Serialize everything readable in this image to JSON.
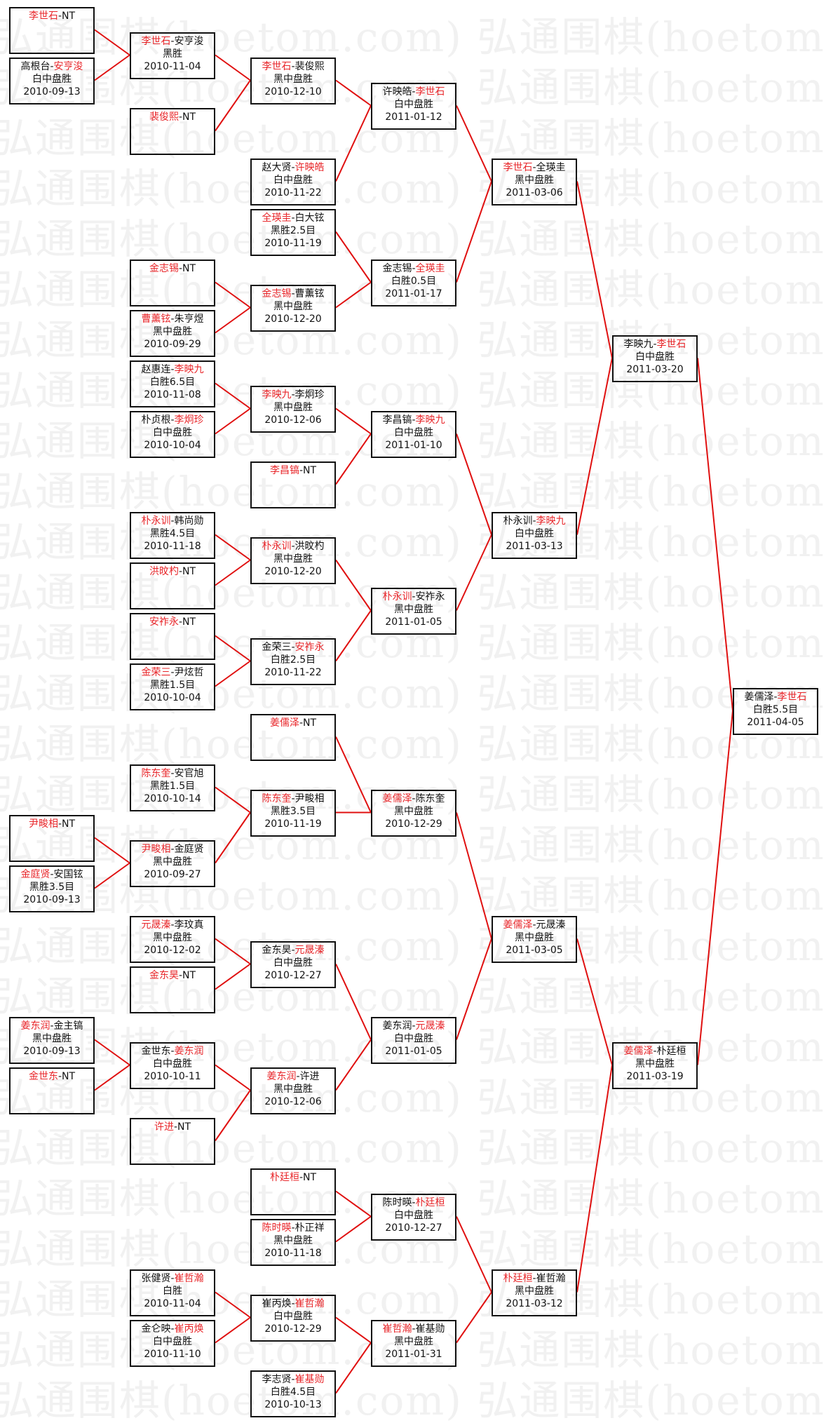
{
  "watermark": "弘通围棋(hoetom.com)",
  "colors": {
    "winner": "#e8262a",
    "line": "#e01010",
    "border": "#111111"
  },
  "matches": [
    {
      "players": [
        {
          "name": "李世石",
          "winner": true
        },
        {
          "name": "NT",
          "winner": false
        }
      ],
      "result": "",
      "date": ""
    },
    {
      "players": [
        {
          "name": "高根台",
          "winner": false
        },
        {
          "name": "安亨浚",
          "winner": true
        }
      ],
      "result": "白中盘胜",
      "date": "2010-09-13"
    },
    {
      "players": [
        {
          "name": "尹畯相",
          "winner": true
        },
        {
          "name": "NT",
          "winner": false
        }
      ],
      "result": "",
      "date": ""
    },
    {
      "players": [
        {
          "name": "金庭贤",
          "winner": true
        },
        {
          "name": "安国铉",
          "winner": false
        }
      ],
      "result": "黑胜3.5目",
      "date": "2010-09-13"
    },
    {
      "players": [
        {
          "name": "姜东润",
          "winner": true
        },
        {
          "name": "金主镐",
          "winner": false
        }
      ],
      "result": "黑中盘胜",
      "date": "2010-09-13"
    },
    {
      "players": [
        {
          "name": "金世东",
          "winner": true
        },
        {
          "name": "NT",
          "winner": false
        }
      ],
      "result": "",
      "date": ""
    },
    {
      "players": [
        {
          "name": "李世石",
          "winner": true
        },
        {
          "name": "安亨浚",
          "winner": false
        }
      ],
      "result": "黑胜",
      "date": "2010-11-04"
    },
    {
      "players": [
        {
          "name": "裴俊熙",
          "winner": true
        },
        {
          "name": "NT",
          "winner": false
        }
      ],
      "result": "",
      "date": ""
    },
    {
      "players": [
        {
          "name": "金志锡",
          "winner": true
        },
        {
          "name": "NT",
          "winner": false
        }
      ],
      "result": "",
      "date": ""
    },
    {
      "players": [
        {
          "name": "曹薰铉",
          "winner": true
        },
        {
          "name": "朱亨煜",
          "winner": false
        }
      ],
      "result": "黑中盘胜",
      "date": "2010-09-29"
    },
    {
      "players": [
        {
          "name": "赵惠连",
          "winner": false
        },
        {
          "name": "李映九",
          "winner": true
        }
      ],
      "result": "白胜6.5目",
      "date": "2010-11-08"
    },
    {
      "players": [
        {
          "name": "朴贞根",
          "winner": false
        },
        {
          "name": "李炯珍",
          "winner": true
        }
      ],
      "result": "白中盘胜",
      "date": "2010-10-04"
    },
    {
      "players": [
        {
          "name": "朴永训",
          "winner": true
        },
        {
          "name": "韩尚勋",
          "winner": false
        }
      ],
      "result": "黑胜4.5目",
      "date": "2010-11-18"
    },
    {
      "players": [
        {
          "name": "洪旼杓",
          "winner": true
        },
        {
          "name": "NT",
          "winner": false
        }
      ],
      "result": "",
      "date": ""
    },
    {
      "players": [
        {
          "name": "安祚永",
          "winner": true
        },
        {
          "name": "NT",
          "winner": false
        }
      ],
      "result": "",
      "date": ""
    },
    {
      "players": [
        {
          "name": "金荣三",
          "winner": true
        },
        {
          "name": "尹炫哲",
          "winner": false
        }
      ],
      "result": "黑胜1.5目",
      "date": "2010-10-04"
    },
    {
      "players": [
        {
          "name": "陈东奎",
          "winner": true
        },
        {
          "name": "安官旭",
          "winner": false
        }
      ],
      "result": "黑胜1.5目",
      "date": "2010-10-14"
    },
    {
      "players": [
        {
          "name": "尹畯相",
          "winner": true
        },
        {
          "name": "金庭贤",
          "winner": false
        }
      ],
      "result": "黑中盘胜",
      "date": "2010-09-27"
    },
    {
      "players": [
        {
          "name": "元晟溱",
          "winner": true
        },
        {
          "name": "李玟真",
          "winner": false
        }
      ],
      "result": "黑中盘胜",
      "date": "2010-12-02"
    },
    {
      "players": [
        {
          "name": "金东昊",
          "winner": true
        },
        {
          "name": "NT",
          "winner": false
        }
      ],
      "result": "",
      "date": ""
    },
    {
      "players": [
        {
          "name": "金世东",
          "winner": false
        },
        {
          "name": "姜东润",
          "winner": true
        }
      ],
      "result": "白中盘胜",
      "date": "2010-10-11"
    },
    {
      "players": [
        {
          "name": "许进",
          "winner": true
        },
        {
          "name": "NT",
          "winner": false
        }
      ],
      "result": "",
      "date": ""
    },
    {
      "players": [
        {
          "name": "张健贤",
          "winner": false
        },
        {
          "name": "崔哲瀚",
          "winner": true
        }
      ],
      "result": "白胜",
      "date": "2010-11-04"
    },
    {
      "players": [
        {
          "name": "金仑映",
          "winner": false
        },
        {
          "name": "崔丙焕",
          "winner": true
        }
      ],
      "result": "白中盘胜",
      "date": "2010-11-10"
    },
    {
      "players": [
        {
          "name": "李世石",
          "winner": true
        },
        {
          "name": "裴俊熙",
          "winner": false
        }
      ],
      "result": "黑中盘胜",
      "date": "2010-12-10"
    },
    {
      "players": [
        {
          "name": "赵大贤",
          "winner": false
        },
        {
          "name": "许映皓",
          "winner": true
        }
      ],
      "result": "白中盘胜",
      "date": "2010-11-22"
    },
    {
      "players": [
        {
          "name": "全瑛圭",
          "winner": true
        },
        {
          "name": "白大铉",
          "winner": false
        }
      ],
      "result": "黑胜2.5目",
      "date": "2010-11-19"
    },
    {
      "players": [
        {
          "name": "金志锡",
          "winner": true
        },
        {
          "name": "曹薰铉",
          "winner": false
        }
      ],
      "result": "黑中盘胜",
      "date": "2010-12-20"
    },
    {
      "players": [
        {
          "name": "李映九",
          "winner": true
        },
        {
          "name": "李炯珍",
          "winner": false
        }
      ],
      "result": "黑中盘胜",
      "date": "2010-12-06"
    },
    {
      "players": [
        {
          "name": "李昌镐",
          "winner": true
        },
        {
          "name": "NT",
          "winner": false
        }
      ],
      "result": "",
      "date": ""
    },
    {
      "players": [
        {
          "name": "朴永训",
          "winner": true
        },
        {
          "name": "洪旼杓",
          "winner": false
        }
      ],
      "result": "黑中盘胜",
      "date": "2010-12-20"
    },
    {
      "players": [
        {
          "name": "金荣三",
          "winner": false
        },
        {
          "name": "安祚永",
          "winner": true
        }
      ],
      "result": "白胜2.5目",
      "date": "2010-11-22"
    },
    {
      "players": [
        {
          "name": "姜儒泽",
          "winner": true
        },
        {
          "name": "NT",
          "winner": false
        }
      ],
      "result": "",
      "date": ""
    },
    {
      "players": [
        {
          "name": "陈东奎",
          "winner": true
        },
        {
          "name": "尹畯相",
          "winner": false
        }
      ],
      "result": "黑胜3.5目",
      "date": "2010-11-19"
    },
    {
      "players": [
        {
          "name": "金东昊",
          "winner": false
        },
        {
          "name": "元晟溱",
          "winner": true
        }
      ],
      "result": "白中盘胜",
      "date": "2010-12-27"
    },
    {
      "players": [
        {
          "name": "姜东润",
          "winner": true
        },
        {
          "name": "许进",
          "winner": false
        }
      ],
      "result": "黑中盘胜",
      "date": "2010-12-06"
    },
    {
      "players": [
        {
          "name": "朴廷桓",
          "winner": true
        },
        {
          "name": "NT",
          "winner": false
        }
      ],
      "result": "",
      "date": ""
    },
    {
      "players": [
        {
          "name": "陈时暎",
          "winner": true
        },
        {
          "name": "朴正祥",
          "winner": false
        }
      ],
      "result": "黑中盘胜",
      "date": "2010-11-18"
    },
    {
      "players": [
        {
          "name": "崔丙焕",
          "winner": false
        },
        {
          "name": "崔哲瀚",
          "winner": true
        }
      ],
      "result": "白中盘胜",
      "date": "2010-12-29"
    },
    {
      "players": [
        {
          "name": "李志贤",
          "winner": false
        },
        {
          "name": "崔基勋",
          "winner": true
        }
      ],
      "result": "白胜4.5目",
      "date": "2010-10-13"
    },
    {
      "players": [
        {
          "name": "许映皓",
          "winner": false
        },
        {
          "name": "李世石",
          "winner": true
        }
      ],
      "result": "白中盘胜",
      "date": "2011-01-12"
    },
    {
      "players": [
        {
          "name": "金志锡",
          "winner": false
        },
        {
          "name": "全瑛圭",
          "winner": true
        }
      ],
      "result": "白胜0.5目",
      "date": "2011-01-17"
    },
    {
      "players": [
        {
          "name": "李昌镐",
          "winner": false
        },
        {
          "name": "李映九",
          "winner": true
        }
      ],
      "result": "白中盘胜",
      "date": "2011-01-10"
    },
    {
      "players": [
        {
          "name": "朴永训",
          "winner": true
        },
        {
          "name": "安祚永",
          "winner": false
        }
      ],
      "result": "黑中盘胜",
      "date": "2011-01-05"
    },
    {
      "players": [
        {
          "name": "姜儒泽",
          "winner": true
        },
        {
          "name": "陈东奎",
          "winner": false
        }
      ],
      "result": "黑中盘胜",
      "date": "2010-12-29"
    },
    {
      "players": [
        {
          "name": "姜东润",
          "winner": false
        },
        {
          "name": "元晟溱",
          "winner": true
        }
      ],
      "result": "白中盘胜",
      "date": "2011-01-05"
    },
    {
      "players": [
        {
          "name": "陈时暎",
          "winner": false
        },
        {
          "name": "朴廷桓",
          "winner": true
        }
      ],
      "result": "白中盘胜",
      "date": "2010-12-27"
    },
    {
      "players": [
        {
          "name": "崔哲瀚",
          "winner": true
        },
        {
          "name": "崔基勋",
          "winner": false
        }
      ],
      "result": "黑中盘胜",
      "date": "2011-01-31"
    },
    {
      "players": [
        {
          "name": "李世石",
          "winner": true
        },
        {
          "name": "全瑛圭",
          "winner": false
        }
      ],
      "result": "黑中盘胜",
      "date": "2011-03-06"
    },
    {
      "players": [
        {
          "name": "朴永训",
          "winner": false
        },
        {
          "name": "李映九",
          "winner": true
        }
      ],
      "result": "白中盘胜",
      "date": "2011-03-13"
    },
    {
      "players": [
        {
          "name": "姜儒泽",
          "winner": true
        },
        {
          "name": "元晟溱",
          "winner": false
        }
      ],
      "result": "黑中盘胜",
      "date": "2011-03-05"
    },
    {
      "players": [
        {
          "name": "朴廷桓",
          "winner": true
        },
        {
          "name": "崔哲瀚",
          "winner": false
        }
      ],
      "result": "黑中盘胜",
      "date": "2011-03-12"
    },
    {
      "players": [
        {
          "name": "李映九",
          "winner": false
        },
        {
          "name": "李世石",
          "winner": true
        }
      ],
      "result": "白中盘胜",
      "date": "2011-03-20"
    },
    {
      "players": [
        {
          "name": "姜儒泽",
          "winner": true
        },
        {
          "name": "朴廷桓",
          "winner": false
        }
      ],
      "result": "黑中盘胜",
      "date": "2011-03-19"
    },
    {
      "players": [
        {
          "name": "姜儒泽",
          "winner": false
        },
        {
          "name": "李世石",
          "winner": true
        }
      ],
      "result": "白胜5.5目",
      "date": "2011-04-05"
    }
  ]
}
